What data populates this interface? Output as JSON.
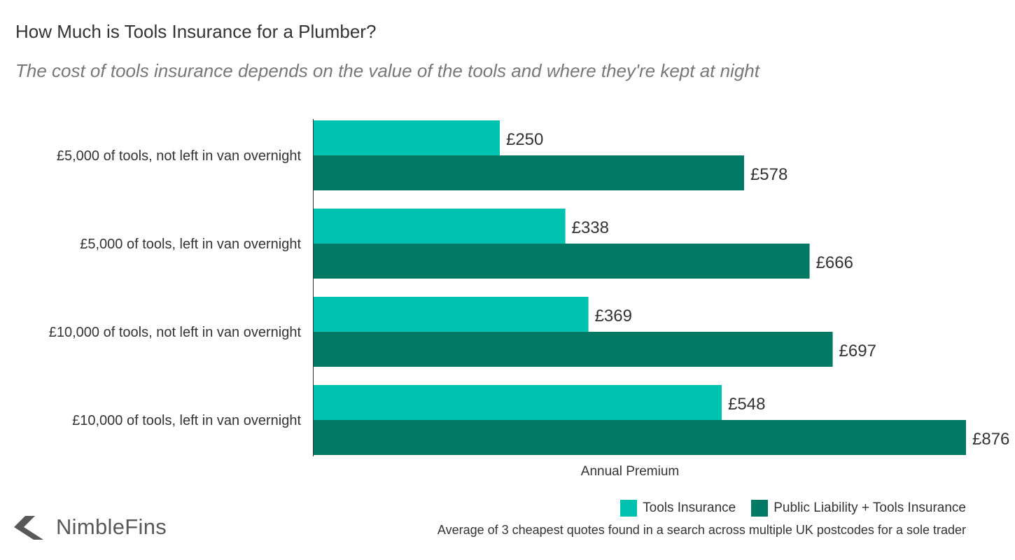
{
  "chart_data": {
    "type": "bar",
    "orientation": "horizontal",
    "title": "How Much is Tools Insurance for a Plumber?",
    "subtitle": "The cost of tools insurance depends on the value of the tools and where they're kept at night",
    "xlabel": "Annual Premium",
    "ylabel": "",
    "xlim": [
      0,
      880
    ],
    "grid": false,
    "legend_position": "bottom-right",
    "categories": [
      "£5,000 of tools, not left in van overnight",
      "£5,000 of tools, left in van overnight",
      "£10,000 of tools, not left in van overnight",
      "£10,000 of tools, left in van overnight"
    ],
    "series": [
      {
        "name": "Tools Insurance",
        "color": "#00c2b0",
        "values": [
          250,
          338,
          369,
          548
        ],
        "labels": [
          "£250",
          "£338",
          "£369",
          "£548"
        ]
      },
      {
        "name": "Public Liability + Tools Insurance",
        "color": "#007a64",
        "values": [
          578,
          666,
          697,
          876
        ],
        "labels": [
          "£578",
          "£666",
          "£697",
          "£876"
        ]
      }
    ]
  },
  "footnote": "Average of 3 cheapest quotes found in a search across multiple UK postcodes for a sole trader",
  "brand": {
    "name": "NimbleFins",
    "color": "#595959"
  }
}
